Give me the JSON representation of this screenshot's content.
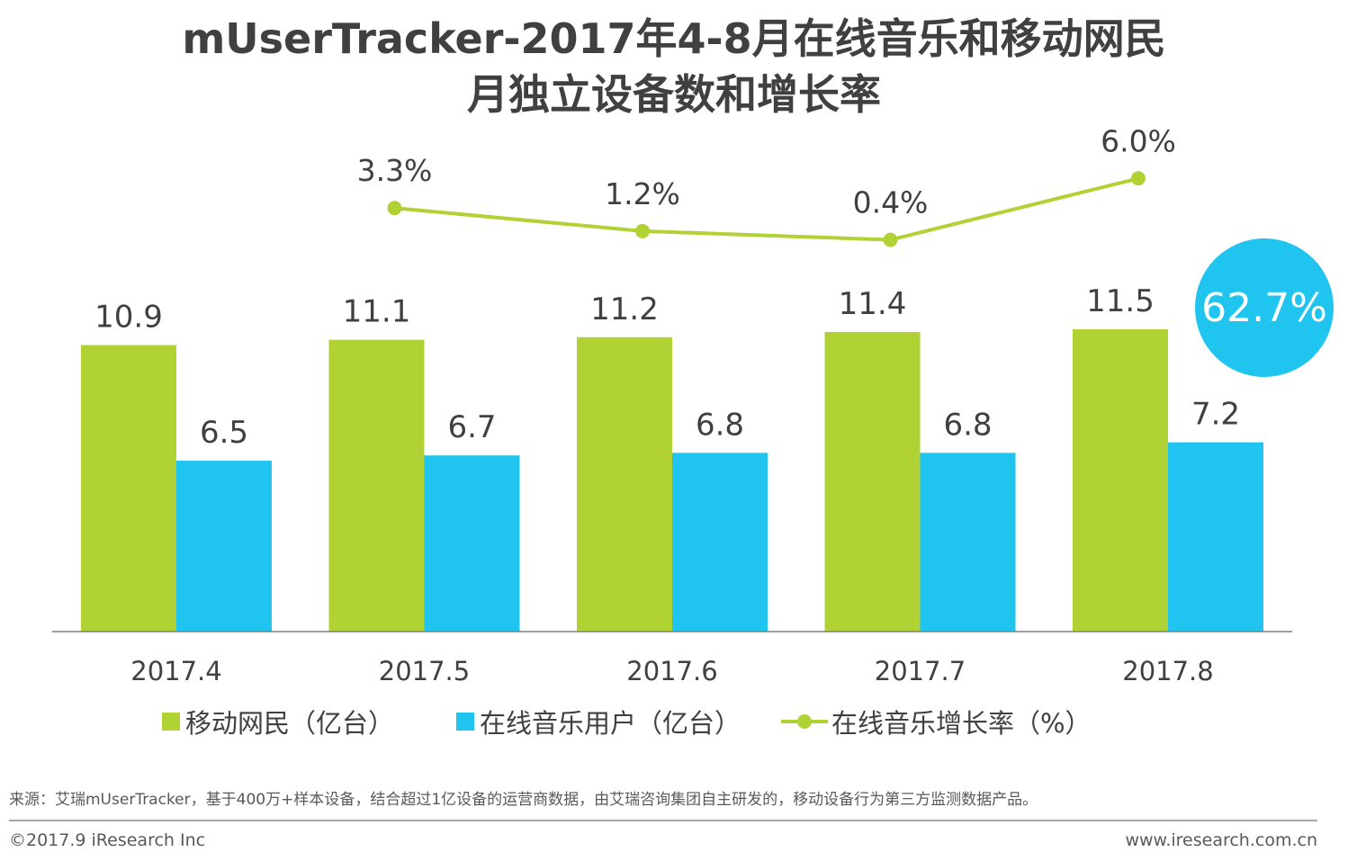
{
  "title": {
    "line1": "mUserTracker-2017年4-8月在线音乐和移动网民",
    "line2": "月独立设备数和增长率"
  },
  "chart_data": {
    "type": "bar",
    "categories": [
      "2017.4",
      "2017.5",
      "2017.6",
      "2017.7",
      "2017.8"
    ],
    "series": [
      {
        "name": "移动网民（亿台）",
        "type": "bar",
        "color": "#b0d234",
        "values": [
          10.9,
          11.1,
          11.2,
          11.4,
          11.5
        ],
        "labels": [
          "10.9",
          "11.1",
          "11.2",
          "11.4",
          "11.5"
        ]
      },
      {
        "name": "在线音乐用户（亿台）",
        "type": "bar",
        "color": "#1fc5ef",
        "values": [
          6.5,
          6.7,
          6.8,
          6.8,
          7.2
        ],
        "labels": [
          "6.5",
          "6.7",
          "6.8",
          "6.8",
          "7.2"
        ]
      },
      {
        "name": "在线音乐增长率（%）",
        "type": "line",
        "color": "#b0d234",
        "values": [
          null,
          3.3,
          1.2,
          0.4,
          6.0
        ],
        "labels": [
          null,
          "3.3%",
          "1.2%",
          "0.4%",
          "6.0%"
        ]
      }
    ],
    "ylim": [
      0,
      11.5
    ],
    "highlight": "62.7%"
  },
  "legend": {
    "mobile": "移动网民（亿台）",
    "music": "在线音乐用户（亿台）",
    "growth": "在线音乐增长率（%）"
  },
  "footer": {
    "source": "来源：艾瑞mUserTracker，基于400万+样本设备，结合超过1亿设备的运营商数据，由艾瑞咨询集团自主研发的，移动设备行为第三方监测数据产品。",
    "copyright": "©2017.9 iResearch Inc",
    "website": "www.iresearch.com.cn"
  },
  "colors": {
    "green": "#b0d234",
    "blue": "#1fc5ef",
    "text": "#404040"
  }
}
